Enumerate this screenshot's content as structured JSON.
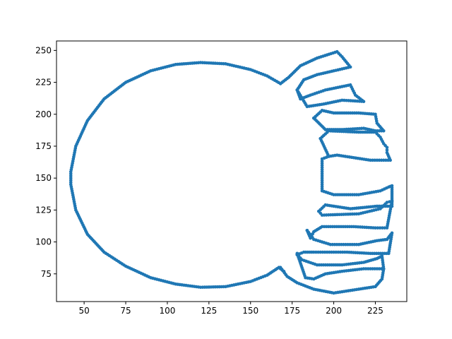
{
  "chart_data": {
    "type": "scatter",
    "title": "",
    "xlabel": "",
    "ylabel": "",
    "xlim": [
      33.4,
      243.9
    ],
    "ylim": [
      53.3,
      257.4
    ],
    "xticks": [
      50,
      75,
      100,
      125,
      150,
      175,
      200,
      225
    ],
    "yticks": [
      75,
      100,
      125,
      150,
      175,
      200,
      225,
      250
    ],
    "grid": false,
    "marker_color": "#1f77b4",
    "marker": "circle",
    "series": [
      {
        "paths": [
          [
            [
              168,
              224
            ],
            [
              160,
              230
            ],
            [
              150,
              235
            ],
            [
              135,
              239.5
            ],
            [
              120,
              240.5
            ],
            [
              105,
              239
            ],
            [
              90,
              234
            ],
            [
              75,
              225
            ],
            [
              62,
              212
            ],
            [
              52,
              195
            ],
            [
              45,
              175
            ],
            [
              42,
              155
            ],
            [
              42,
              145
            ],
            [
              45,
              125
            ],
            [
              52,
              106
            ],
            [
              62,
              92
            ],
            [
              75,
              81
            ],
            [
              90,
              72
            ],
            [
              105,
              67
            ],
            [
              120,
              64.5
            ],
            [
              135,
              65
            ],
            [
              150,
              69
            ],
            [
              160,
              74
            ],
            [
              167,
              80
            ],
            [
              170,
              77
            ]
          ],
          [
            [
              168,
              224
            ],
            [
              173,
              229
            ],
            [
              180,
              238
            ],
            [
              190,
              244
            ],
            [
              202,
              249
            ],
            [
              205,
              245
            ],
            [
              210,
              237
            ],
            [
              200,
              234
            ],
            [
              190,
              231
            ],
            [
              182,
              227
            ],
            [
              178,
              219
            ]
          ],
          [
            [
              178,
              219
            ],
            [
              180,
              212
            ],
            [
              186,
              215
            ],
            [
              195,
              219
            ],
            [
              210,
              223
            ],
            [
              213,
              215
            ],
            [
              218,
              210
            ],
            [
              205,
              211
            ],
            [
              194,
              208
            ],
            [
              184,
              206
            ],
            [
              178,
              219
            ]
          ],
          [
            [
              188,
              197
            ],
            [
              193,
              203
            ],
            [
              200,
              201
            ],
            [
              215,
              201
            ],
            [
              225,
              200
            ],
            [
              226,
              193
            ],
            [
              230,
              187
            ],
            [
              225,
              187
            ],
            [
              218,
              189
            ],
            [
              205,
              188
            ],
            [
              195,
              188
            ],
            [
              188,
              197
            ]
          ],
          [
            [
              192,
              181
            ],
            [
              197,
              187
            ],
            [
              215,
              186
            ],
            [
              225,
              186
            ],
            [
              228,
              182
            ],
            [
              230,
              177
            ],
            [
              232,
              174
            ],
            [
              232,
              170
            ],
            [
              234,
              164
            ],
            [
              222,
              164
            ],
            [
              212,
              166
            ],
            [
              202,
              168
            ],
            [
              197,
              167
            ],
            [
              192,
              181
            ]
          ],
          [
            [
              197,
              167
            ],
            [
              193,
              165
            ],
            [
              193,
              140
            ],
            [
              200,
              137
            ],
            [
              215,
              137
            ],
            [
              228,
              140
            ],
            [
              233,
              143
            ],
            [
              235,
              144
            ],
            [
              235,
              128
            ],
            [
              226,
              128
            ],
            [
              210,
              126
            ],
            [
              200,
              128
            ],
            [
              195,
              129
            ],
            [
              191,
              124
            ]
          ],
          [
            [
              191,
              124
            ],
            [
              193,
              121
            ],
            [
              215,
              122
            ],
            [
              228,
              126
            ],
            [
              232,
              131
            ],
            [
              235,
              132
            ],
            [
              232,
              111
            ],
            [
              225,
              111
            ],
            [
              212,
              112
            ],
            [
              198,
              112
            ],
            [
              193,
              112
            ],
            [
              188,
              108
            ],
            [
              186,
              103
            ],
            [
              184,
              109
            ]
          ],
          [
            [
              184,
              109
            ],
            [
              188,
              102
            ],
            [
              198,
              98
            ],
            [
              215,
              98
            ],
            [
              226,
              101
            ],
            [
              232,
              102
            ],
            [
              235,
              107
            ],
            [
              233,
              91
            ],
            [
              222,
              91
            ],
            [
              208,
              92
            ],
            [
              196,
              92
            ],
            [
              188,
              92
            ],
            [
              182,
              92
            ],
            [
              178,
              90
            ]
          ],
          [
            [
              178,
              90
            ],
            [
              181,
              86
            ],
            [
              190,
              82
            ],
            [
              205,
              82
            ],
            [
              218,
              84
            ],
            [
              226,
              87
            ],
            [
              229,
              89
            ],
            [
              230,
              79
            ],
            [
              218,
              79
            ],
            [
              205,
              77
            ],
            [
              195,
              75
            ],
            [
              188,
              71
            ],
            [
              183,
              72
            ],
            [
              178,
              91
            ]
          ],
          [
            [
              168,
              80
            ],
            [
              172,
              73
            ],
            [
              178,
              68
            ],
            [
              188,
              63
            ],
            [
              200,
              60
            ],
            [
              215,
              63
            ],
            [
              225,
              65
            ],
            [
              229,
              71
            ],
            [
              230,
              79
            ]
          ]
        ]
      }
    ]
  }
}
